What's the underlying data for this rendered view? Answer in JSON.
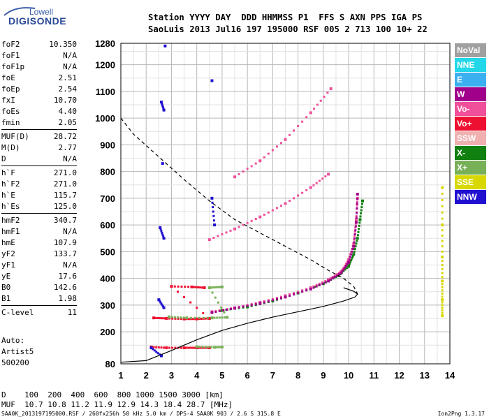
{
  "logo": {
    "line1": "Lowell",
    "line2": "DIGISONDE"
  },
  "header": {
    "row1": "Station YYYY DAY  DDD HHMMSS P1  FFS S AXN PPS IGA PS",
    "row2": "SaoLuis 2013 Jul16 197 195000 RSF 005 2 713 100 10+ 22"
  },
  "params_groups": [
    [
      [
        "foF2",
        "10.350"
      ],
      [
        "foF1",
        "N/A"
      ],
      [
        "foF1p",
        "N/A"
      ],
      [
        "foE",
        "2.51"
      ],
      [
        "foEp",
        "2.54"
      ],
      [
        "fxI",
        "10.70"
      ],
      [
        "foEs",
        "4.40"
      ],
      [
        "fmin",
        "2.05"
      ]
    ],
    [
      [
        "MUF(D)",
        "28.72"
      ],
      [
        "M(D)",
        "2.77"
      ],
      [
        "D",
        "N/A"
      ]
    ],
    [
      [
        "h`F",
        "271.0"
      ],
      [
        "h`F2",
        "271.0"
      ],
      [
        "h`E",
        "115.7"
      ],
      [
        "h`Es",
        "125.0"
      ]
    ],
    [
      [
        "hmF2",
        "340.7"
      ],
      [
        "hmF1",
        "N/A"
      ],
      [
        "hmE",
        "107.9"
      ],
      [
        "yF2",
        "133.7"
      ],
      [
        "yF1",
        "N/A"
      ],
      [
        "yE",
        "17.6"
      ],
      [
        "B0",
        "142.6"
      ],
      [
        "B1",
        "1.98"
      ]
    ],
    [
      [
        "C-level",
        "11"
      ]
    ]
  ],
  "auto": {
    "line1": "Auto:",
    "line2": "Artist5",
    "line3": "500200"
  },
  "distance_table": {
    "row1": "D    100  200  400  600  800 1000 1500 3000 [km]",
    "row2": "MUF  10.7 10.8 11.2 11.9 12.9 14.3 18.4 28.7 [MHz]"
  },
  "footer": "SAA0K_2013197195000.RSF / 260fx256h 50 kHz 5.0 km / DPS-4 SAA0K 903 / 2.6 S 315.8 E",
  "version": "Ion2Png 1.3.17",
  "legend": [
    {
      "label": "NoVal",
      "color": "#a0a0a0"
    },
    {
      "label": "NNE",
      "color": "#22d8e8"
    },
    {
      "label": "E",
      "color": "#3ab0f0"
    },
    {
      "label": "W",
      "color": "#a0008a"
    },
    {
      "label": "Vo-",
      "color": "#f0509a"
    },
    {
      "label": "Vo+",
      "color": "#ee1030"
    },
    {
      "label": "SSW",
      "color": "#f0b0b0"
    },
    {
      "label": "X-",
      "color": "#108010"
    },
    {
      "label": "X+",
      "color": "#78b058"
    },
    {
      "label": "SSE",
      "color": "#d8d800"
    },
    {
      "label": "NNW",
      "color": "#2010d0"
    }
  ],
  "chart_data": {
    "type": "scatter",
    "title": "",
    "xlabel": "",
    "ylabel": "",
    "xlim": [
      1,
      14
    ],
    "ylim": [
      80,
      1280
    ],
    "x_ticks": [
      1,
      2,
      3,
      4,
      5,
      6,
      7,
      8,
      9,
      10,
      11,
      12,
      13,
      14
    ],
    "y_ticks": [
      80,
      200,
      300,
      400,
      500,
      600,
      700,
      800,
      900,
      1000,
      1100,
      1200,
      1280
    ],
    "grid": true,
    "series": [
      {
        "name": "X-",
        "color": "#108010",
        "points": [
          [
            5.0,
            280
          ],
          [
            6.0,
            293
          ],
          [
            7.0,
            315
          ],
          [
            8.0,
            345
          ],
          [
            9.0,
            380
          ],
          [
            9.6,
            410
          ],
          [
            10.0,
            445
          ],
          [
            10.2,
            490
          ],
          [
            10.35,
            550
          ],
          [
            10.45,
            620
          ],
          [
            10.55,
            690
          ]
        ]
      },
      {
        "name": "Vo-",
        "color": "#f0509a",
        "points": [
          [
            4.6,
            275
          ],
          [
            5.5,
            290
          ],
          [
            6.5,
            310
          ],
          [
            7.5,
            335
          ],
          [
            8.5,
            365
          ],
          [
            9.2,
            395
          ],
          [
            9.7,
            425
          ],
          [
            10.0,
            470
          ],
          [
            10.2,
            530
          ],
          [
            10.3,
            620
          ],
          [
            10.35,
            700
          ]
        ]
      },
      {
        "name": "W",
        "color": "#a0008a",
        "points": [
          [
            4.6,
            272
          ],
          [
            5.5,
            288
          ],
          [
            6.5,
            306
          ],
          [
            7.5,
            330
          ],
          [
            8.5,
            360
          ],
          [
            9.2,
            390
          ],
          [
            9.7,
            420
          ],
          [
            10.0,
            460
          ],
          [
            10.2,
            520
          ],
          [
            10.3,
            610
          ],
          [
            10.35,
            715
          ]
        ]
      },
      {
        "name": "Vo-",
        "color": "#f0509a",
        "points": [
          [
            4.5,
            545
          ],
          [
            5.5,
            585
          ],
          [
            6.5,
            630
          ],
          [
            7.5,
            680
          ],
          [
            8.5,
            740
          ],
          [
            9.2,
            790
          ]
        ]
      },
      {
        "name": "Vo+",
        "color": "#ee1030",
        "points": [
          [
            2.3,
            252
          ],
          [
            2.8,
            250
          ],
          [
            3.5,
            248
          ],
          [
            4.0,
            248
          ],
          [
            4.5,
            250
          ],
          [
            3.0,
            370
          ],
          [
            3.8,
            368
          ],
          [
            4.3,
            365
          ],
          [
            2.2,
            143
          ],
          [
            2.8,
            140
          ],
          [
            3.5,
            140
          ],
          [
            4.0,
            140
          ],
          [
            4.5,
            140
          ]
        ]
      },
      {
        "name": "X+",
        "color": "#78b058",
        "points": [
          [
            2.9,
            256
          ],
          [
            3.6,
            252
          ],
          [
            4.6,
            252
          ],
          [
            5.2,
            254
          ],
          [
            4.5,
            365
          ],
          [
            5.0,
            368
          ],
          [
            4.0,
            144
          ],
          [
            4.7,
            142
          ],
          [
            5.0,
            143
          ]
        ]
      },
      {
        "name": "Vo-",
        "color": "#f0509a",
        "points": [
          [
            5.5,
            780
          ],
          [
            6.5,
            840
          ],
          [
            7.5,
            920
          ],
          [
            8.5,
            1020
          ],
          [
            9.3,
            1110
          ]
        ]
      },
      {
        "name": "NNW",
        "color": "#2010d0",
        "points": [
          [
            2.6,
            1060
          ],
          [
            2.7,
            1030
          ],
          [
            2.65,
            830
          ],
          [
            2.55,
            590
          ],
          [
            2.7,
            550
          ],
          [
            2.5,
            320
          ],
          [
            2.7,
            290
          ],
          [
            4.6,
            1140
          ],
          [
            4.6,
            700
          ],
          [
            4.7,
            600
          ],
          [
            2.75,
            1270
          ],
          [
            2.6,
            110
          ],
          [
            2.2,
            140
          ]
        ]
      },
      {
        "name": "SSE",
        "color": "#d8d800",
        "points": [
          [
            13.7,
            740
          ],
          [
            13.7,
            600
          ],
          [
            13.7,
            480
          ],
          [
            13.7,
            390
          ],
          [
            13.7,
            320
          ],
          [
            13.7,
            260
          ]
        ]
      }
    ],
    "profile_solid": [
      [
        1.0,
        86
      ],
      [
        2.0,
        92
      ],
      [
        3.0,
        130
      ],
      [
        4.0,
        170
      ],
      [
        5.0,
        205
      ],
      [
        6.0,
        232
      ],
      [
        7.0,
        255
      ],
      [
        8.0,
        275
      ],
      [
        9.0,
        295
      ],
      [
        9.8,
        315
      ],
      [
        10.25,
        330
      ],
      [
        10.35,
        341
      ],
      [
        10.2,
        352
      ],
      [
        9.8,
        365
      ]
    ],
    "profile_dashed": [
      [
        1.0,
        1000
      ],
      [
        1.5,
        940
      ],
      [
        2.5,
        855
      ],
      [
        3.5,
        770
      ],
      [
        4.5,
        690
      ],
      [
        5.5,
        620
      ],
      [
        6.5,
        570
      ],
      [
        7.5,
        520
      ],
      [
        8.5,
        470
      ],
      [
        9.2,
        430
      ],
      [
        9.8,
        400
      ],
      [
        10.2,
        370
      ],
      [
        10.35,
        342
      ]
    ]
  }
}
